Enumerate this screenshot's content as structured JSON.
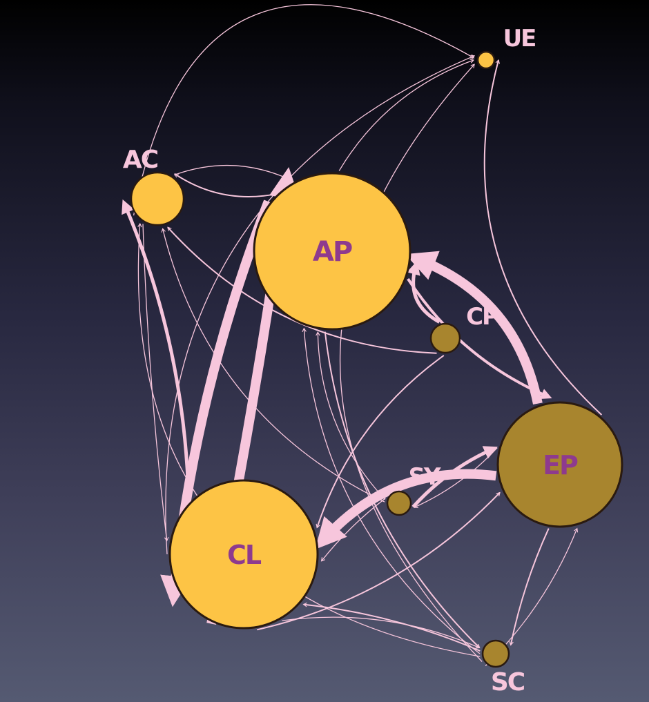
{
  "colors": {
    "background_top": "#000000",
    "background_bottom": "#555a72",
    "edge": "#f7c6dc",
    "node_light": "#fdc445",
    "node_dark": "#a8852e",
    "label_inner": "#8e3a8e",
    "label_outer": "#f7c6dc"
  },
  "nodes": {
    "ue": {
      "label": "UE",
      "fill": "light",
      "label_style": "outer"
    },
    "ac": {
      "label": "AC",
      "fill": "light",
      "label_style": "outer"
    },
    "ap": {
      "label": "AP",
      "fill": "light",
      "label_style": "inner"
    },
    "cp": {
      "label": "CP",
      "fill": "dark",
      "label_style": "outer"
    },
    "ep": {
      "label": "EP",
      "fill": "dark",
      "label_style": "inner"
    },
    "sy": {
      "label": "SY",
      "fill": "dark",
      "label_style": "outer"
    },
    "cl": {
      "label": "CL",
      "fill": "light",
      "label_style": "inner"
    },
    "sc": {
      "label": "SC",
      "fill": "dark",
      "label_style": "outer"
    }
  },
  "edges": [
    {
      "from": "ap",
      "to": "cl",
      "weight": "heavy"
    },
    {
      "from": "cl",
      "to": "ap",
      "weight": "heavy"
    },
    {
      "from": "ep",
      "to": "ap",
      "weight": "heavy"
    },
    {
      "from": "ep",
      "to": "cl",
      "weight": "heavy"
    },
    {
      "from": "cl",
      "to": "ac",
      "weight": "medium"
    },
    {
      "from": "sy",
      "to": "ep",
      "weight": "medium"
    },
    {
      "from": "cp",
      "to": "ap",
      "weight": "medium"
    },
    {
      "from": "ap",
      "to": "ep",
      "weight": "medium"
    },
    {
      "from": "ap",
      "to": "ac",
      "weight": "thin"
    },
    {
      "from": "ac",
      "to": "ap",
      "weight": "thin"
    },
    {
      "from": "ap",
      "to": "ue",
      "weight": "thin"
    },
    {
      "from": "ep",
      "to": "ue",
      "weight": "thin"
    },
    {
      "from": "ap",
      "to": "sc",
      "weight": "thin"
    },
    {
      "from": "cp",
      "to": "cl",
      "weight": "thin"
    },
    {
      "from": "cp",
      "to": "ac",
      "weight": "thin"
    },
    {
      "from": "ep",
      "to": "sy",
      "weight": "thin"
    },
    {
      "from": "sy",
      "to": "cl",
      "weight": "thin"
    },
    {
      "from": "sy",
      "to": "ap",
      "weight": "thin"
    },
    {
      "from": "sy",
      "to": "ac",
      "weight": "thin"
    },
    {
      "from": "ep",
      "to": "sc",
      "weight": "thin"
    },
    {
      "from": "sc",
      "to": "cl",
      "weight": "thin"
    },
    {
      "from": "sc",
      "to": "ap",
      "weight": "thin"
    },
    {
      "from": "sc",
      "to": "ac",
      "weight": "thin"
    },
    {
      "from": "cl",
      "to": "ep",
      "weight": "thin"
    },
    {
      "from": "cl",
      "to": "ue",
      "weight": "thin"
    },
    {
      "from": "ac",
      "to": "ue",
      "weight": "thin"
    },
    {
      "from": "sc",
      "to": "ue",
      "weight": "thin"
    },
    {
      "from": "cl",
      "to": "sc",
      "weight": "thin"
    },
    {
      "from": "sc",
      "to": "ep",
      "weight": "thin"
    },
    {
      "from": "ac",
      "to": "cl",
      "weight": "thin"
    }
  ]
}
